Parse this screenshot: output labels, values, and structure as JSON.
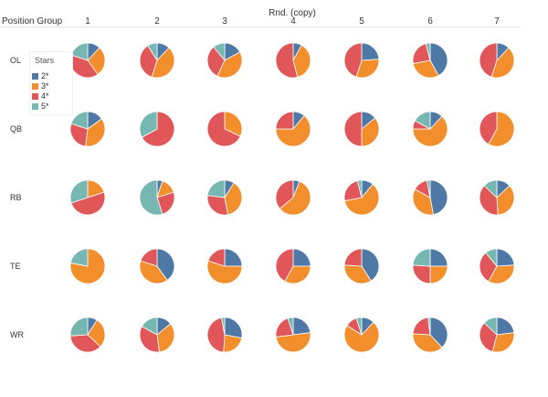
{
  "chart_data": {
    "type": "pie",
    "title": "Rnd. (copy)",
    "row_header": "Position Group",
    "columns": [
      "1",
      "2",
      "3",
      "4",
      "5",
      "6",
      "7"
    ],
    "rows": [
      "OL",
      "QB",
      "RB",
      "TE",
      "WR"
    ],
    "legend": {
      "title": "Stars",
      "items": [
        {
          "label": "2*",
          "color": "#4e79a7"
        },
        {
          "label": "3*",
          "color": "#f28e2b"
        },
        {
          "label": "4*",
          "color": "#e15759"
        },
        {
          "label": "5*",
          "color": "#76b7b2"
        }
      ]
    },
    "series_order": [
      "2*",
      "3*",
      "4*",
      "5*"
    ],
    "values_pct": {
      "OL": [
        [
          12,
          28,
          40,
          20
        ],
        [
          12,
          43,
          36,
          9
        ],
        [
          17,
          40,
          32,
          11
        ],
        [
          8,
          38,
          54,
          0
        ],
        [
          24,
          31,
          45,
          0
        ],
        [
          42,
          30,
          24,
          4
        ],
        [
          12,
          43,
          45,
          0
        ]
      ],
      "QB": [
        [
          15,
          37,
          28,
          20
        ],
        [
          0,
          0,
          67,
          33
        ],
        [
          0,
          32,
          68,
          0
        ],
        [
          11,
          64,
          25,
          0
        ],
        [
          14,
          36,
          50,
          0
        ],
        [
          12,
          63,
          8,
          17
        ],
        [
          0,
          58,
          42,
          0
        ]
      ],
      "RB": [
        [
          0,
          20,
          50,
          30
        ],
        [
          5,
          15,
          25,
          55
        ],
        [
          9,
          38,
          30,
          23
        ],
        [
          6,
          58,
          36,
          0
        ],
        [
          11,
          61,
          24,
          4
        ],
        [
          47,
          36,
          14,
          3
        ],
        [
          13,
          36,
          38,
          13
        ]
      ],
      "TE": [
        [
          0,
          78,
          0,
          22
        ],
        [
          40,
          40,
          20,
          0
        ],
        [
          25,
          55,
          20,
          0
        ],
        [
          25,
          33,
          42,
          0
        ],
        [
          41,
          35,
          24,
          0
        ],
        [
          25,
          25,
          26,
          24
        ],
        [
          24,
          34,
          31,
          11
        ]
      ],
      "WR": [
        [
          9,
          28,
          37,
          26
        ],
        [
          14,
          34,
          35,
          17
        ],
        [
          28,
          23,
          46,
          3
        ],
        [
          23,
          50,
          22,
          5
        ],
        [
          12,
          72,
          11,
          5
        ],
        [
          38,
          38,
          22,
          2
        ],
        [
          23,
          31,
          33,
          13
        ]
      ]
    }
  }
}
